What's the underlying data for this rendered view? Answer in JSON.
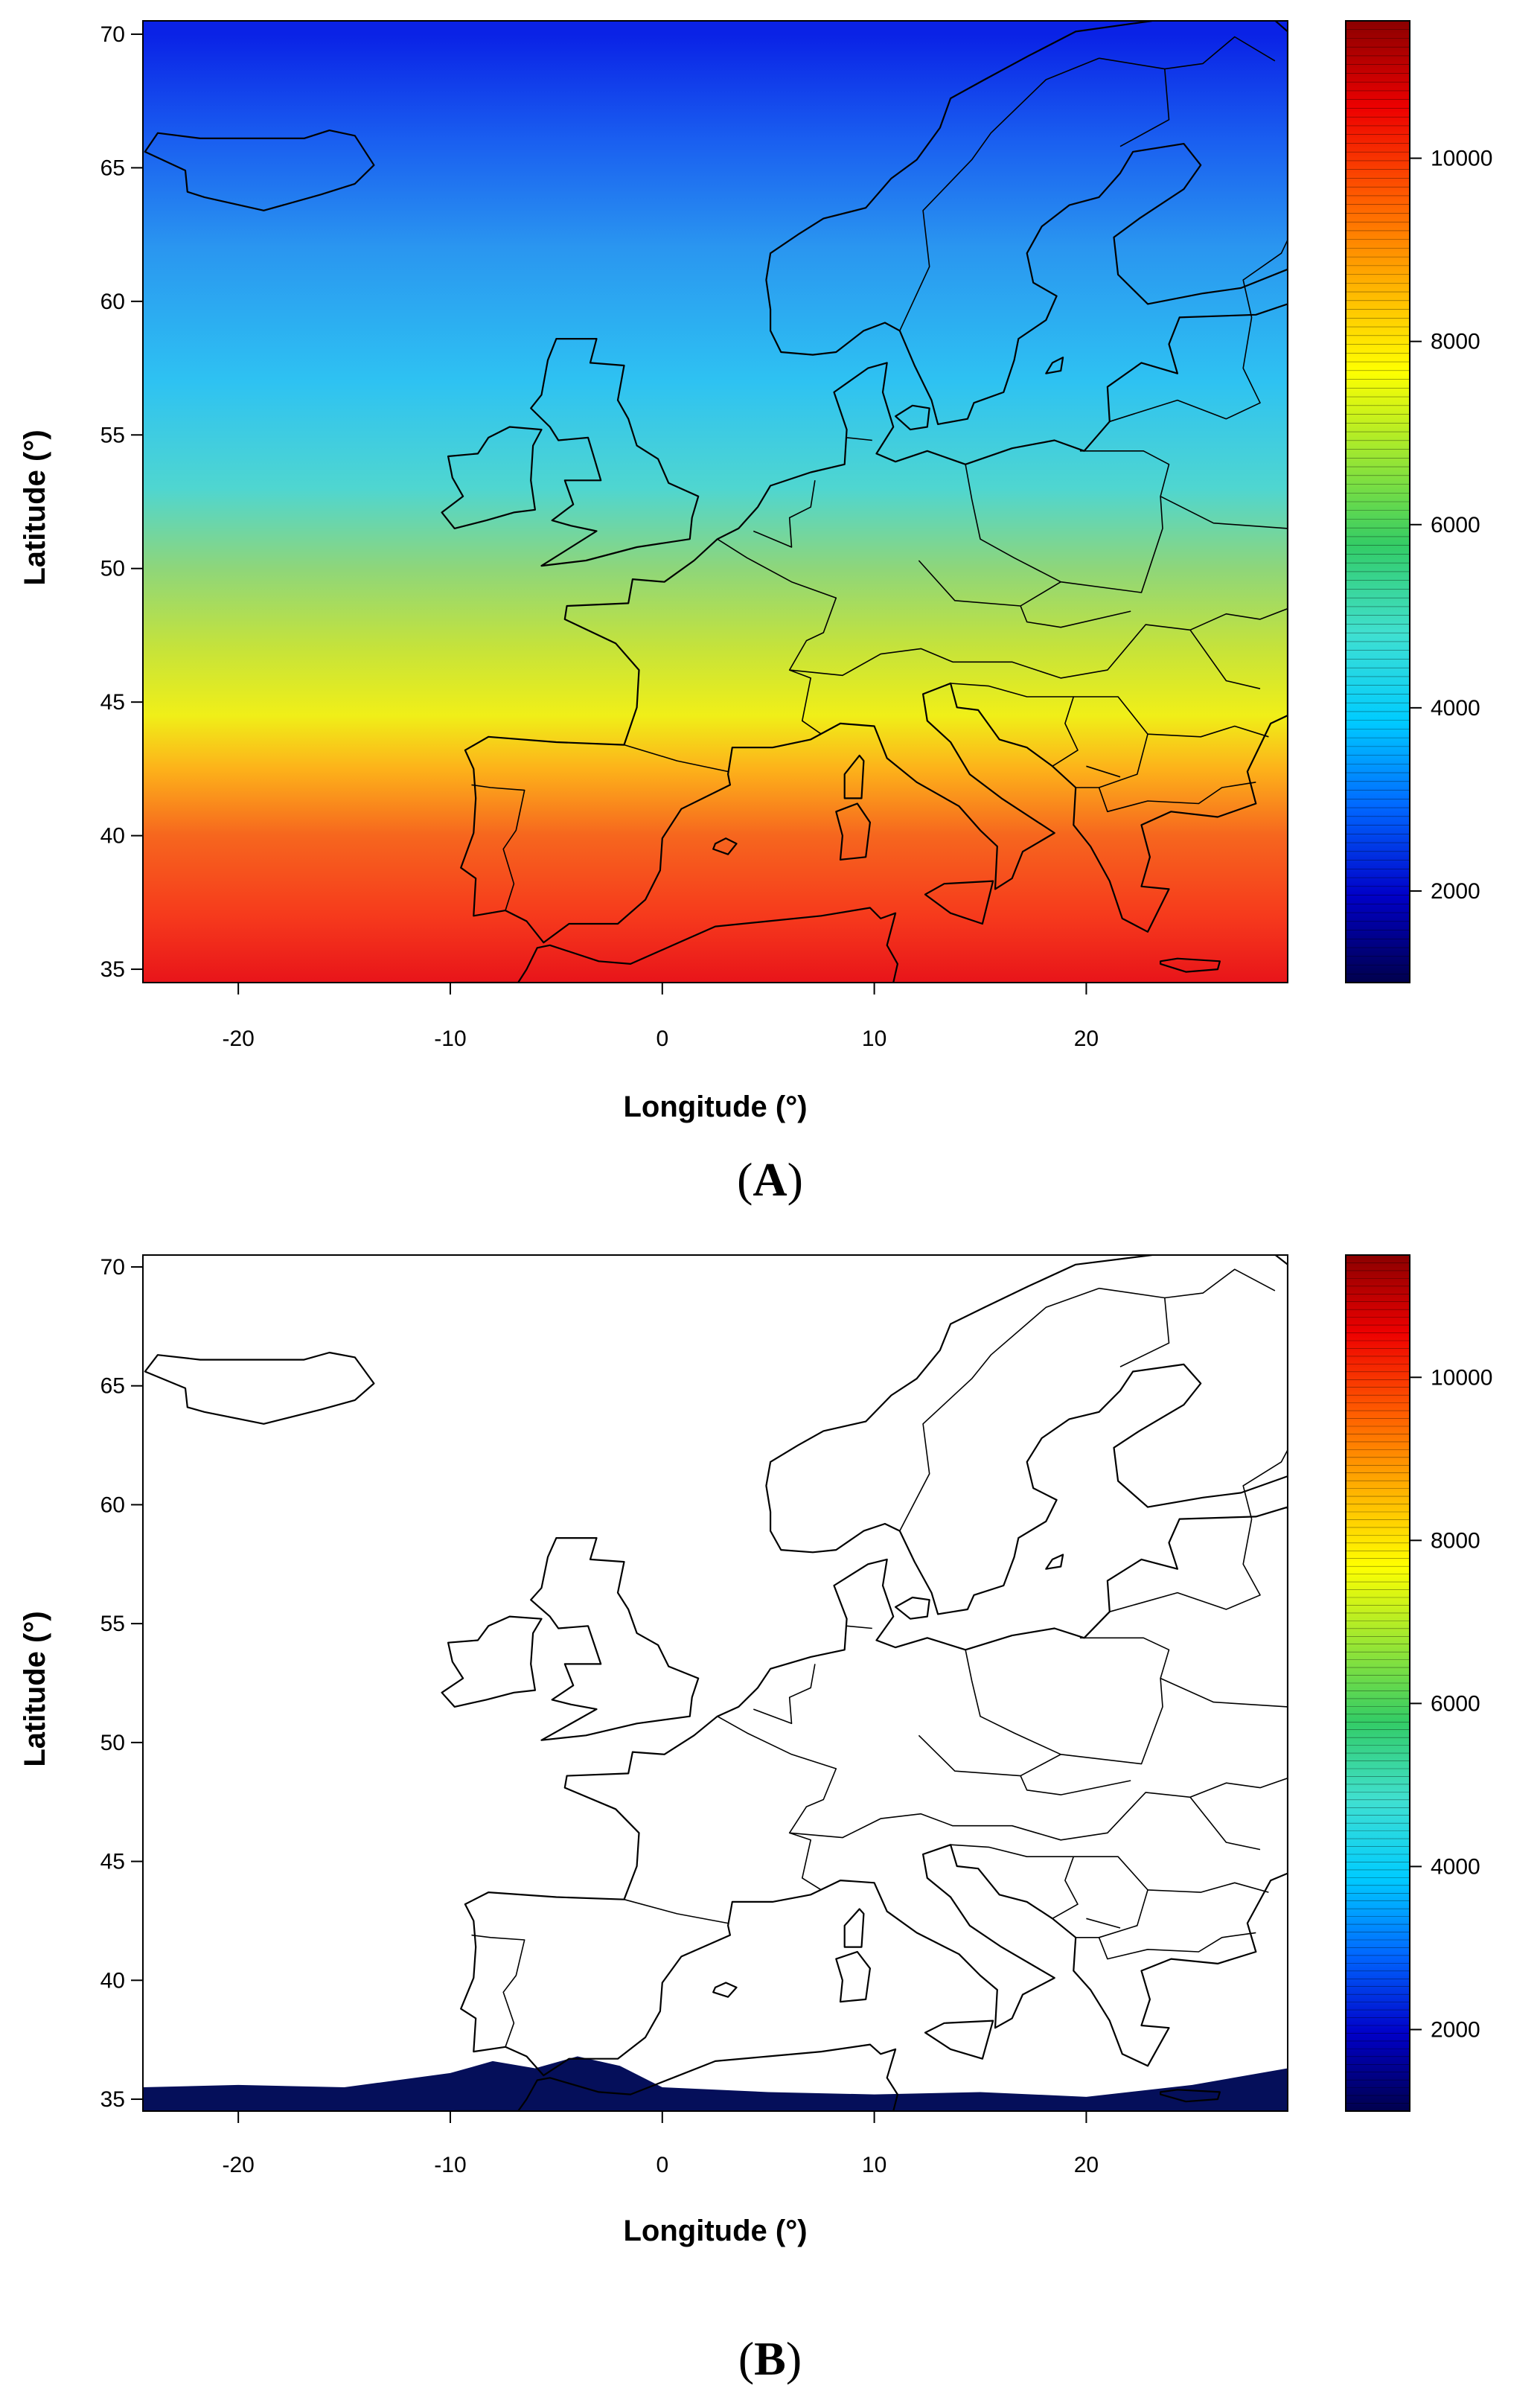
{
  "figure": {
    "xlabel": "Longitude (°)",
    "ylabel": "Latitude (°)",
    "x_ticks": [
      -20,
      -10,
      0,
      10,
      20
    ],
    "y_ticks": [
      35,
      40,
      45,
      50,
      55,
      60,
      65,
      70
    ],
    "xlim": [
      -24.5,
      29.5
    ],
    "ylim": [
      34.5,
      70.5
    ],
    "colorbar": {
      "ticks": [
        2000,
        4000,
        6000,
        8000,
        10000
      ],
      "range": [
        1000,
        11500
      ],
      "colors": [
        "#00004d",
        "#0000c8",
        "#0066ff",
        "#00ccff",
        "#40e0d0",
        "#33cc66",
        "#99e633",
        "#ffff00",
        "#ffb000",
        "#ff5a00",
        "#ee0000",
        "#8b0000"
      ]
    }
  },
  "panels": [
    {
      "label_open": "(",
      "label": "A",
      "label_close": ")",
      "field_color_stops": [
        {
          "lat": 70,
          "color": "#0a22e6"
        },
        {
          "lat": 66,
          "color": "#1a5ff0"
        },
        {
          "lat": 62,
          "color": "#2a96f0"
        },
        {
          "lat": 57,
          "color": "#2ec2f2"
        },
        {
          "lat": 53,
          "color": "#4fd6d0"
        },
        {
          "lat": 50,
          "color": "#8ed67a"
        },
        {
          "lat": 47,
          "color": "#c6e33a"
        },
        {
          "lat": 44.5,
          "color": "#f0ef18"
        },
        {
          "lat": 42.5,
          "color": "#fdb21a"
        },
        {
          "lat": 40,
          "color": "#f6661e"
        },
        {
          "lat": 37,
          "color": "#f63a1c"
        },
        {
          "lat": 34.5,
          "color": "#e8141a"
        }
      ]
    },
    {
      "label_open": "(",
      "label": "B",
      "label_close": ")",
      "fill_color": "#050f5a"
    }
  ]
}
